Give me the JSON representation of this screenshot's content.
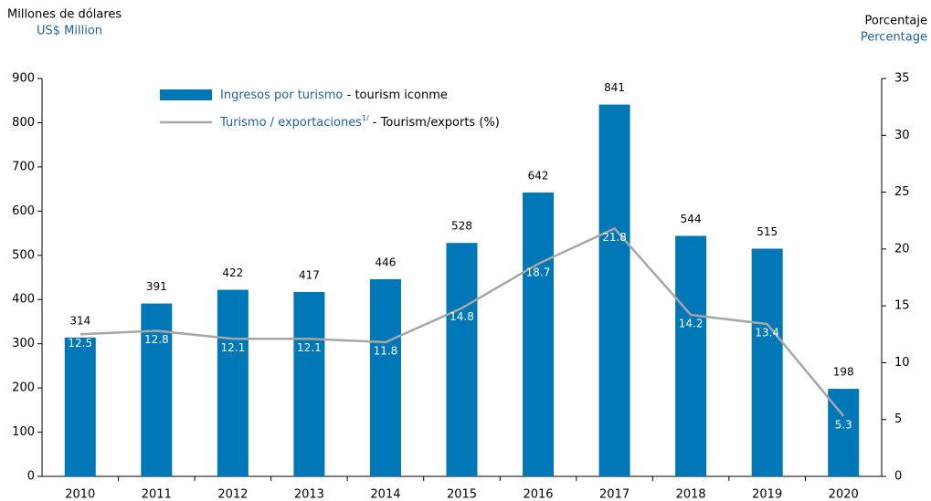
{
  "chart_data": {
    "type": "bar",
    "y_label": "Millones de dólares",
    "y_label_en": "US$ Million",
    "y2_label": "Porcentaje",
    "y2_label_en": "Percentage",
    "categories": [
      "2010",
      "2011",
      "2012",
      "2013",
      "2014",
      "2015",
      "2016",
      "2017",
      "2018",
      "2019",
      "2020"
    ],
    "series": [
      {
        "name": "Ingresos por turismo",
        "name_en": "- tourism iconme",
        "type": "bar",
        "color": "#0077b6",
        "values": [
          314,
          391,
          422,
          417,
          446,
          528,
          642,
          841,
          544,
          515,
          198
        ]
      },
      {
        "name": "Turismo / exportaciones",
        "note": "1/",
        "name_en": "- Tourism/exports (%)",
        "type": "line",
        "axis": "y2",
        "color": "#a6a6a6",
        "values": [
          12.5,
          12.8,
          12.1,
          12.1,
          11.8,
          14.8,
          18.7,
          21.8,
          14.2,
          13.4,
          5.3
        ]
      }
    ],
    "ylim": [
      0,
      900
    ],
    "yticks": [
      0,
      100,
      200,
      300,
      400,
      500,
      600,
      700,
      800,
      900
    ],
    "y2lim": [
      0,
      35
    ],
    "y2ticks": [
      0,
      5,
      10,
      15,
      20,
      25,
      30,
      35
    ]
  }
}
